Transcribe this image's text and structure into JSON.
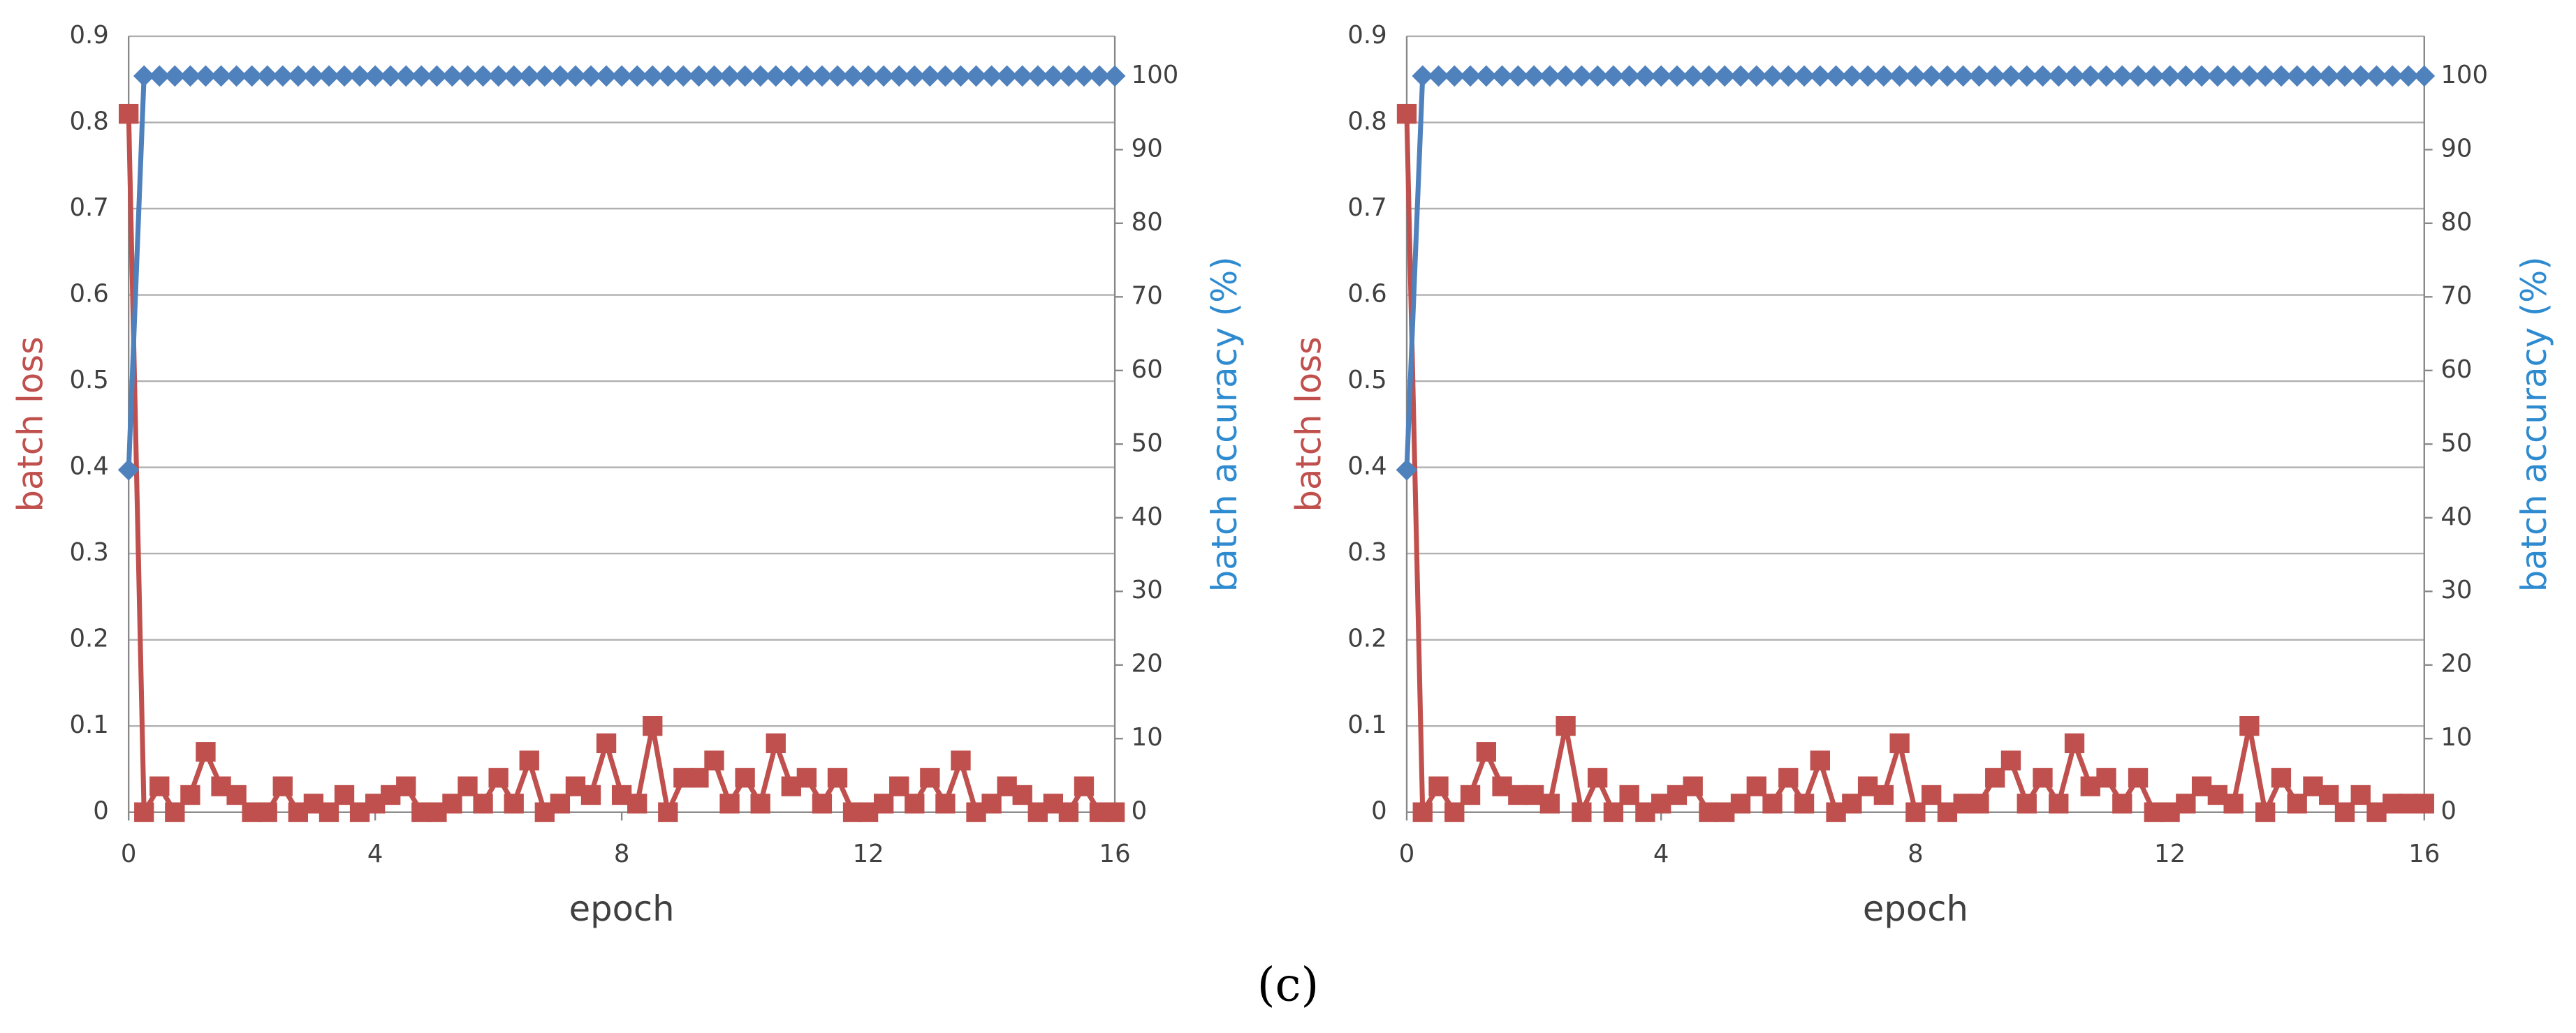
{
  "caption": "(c)",
  "chart_data": [
    {
      "type": "line",
      "xlabel": "epoch",
      "ylabel": "batch loss",
      "y2label": "batch accuracy (%)",
      "x": [
        0,
        0.25,
        0.5,
        0.75,
        1,
        1.25,
        1.5,
        1.75,
        2,
        2.25,
        2.5,
        2.75,
        3,
        3.25,
        3.5,
        3.75,
        4,
        4.25,
        4.5,
        4.75,
        5,
        5.25,
        5.5,
        5.75,
        6,
        6.25,
        6.5,
        6.75,
        7,
        7.25,
        7.5,
        7.75,
        8,
        8.25,
        8.5,
        8.75,
        9,
        9.25,
        9.5,
        9.75,
        10,
        10.25,
        10.5,
        10.75,
        11,
        11.25,
        11.5,
        11.75,
        12,
        12.25,
        12.5,
        12.75,
        13,
        13.25,
        13.5,
        13.75,
        14,
        14.25,
        14.5,
        14.75,
        15,
        15.25,
        15.5,
        15.75,
        16
      ],
      "xlim": [
        0,
        16
      ],
      "xticks": [
        0,
        4,
        8,
        12,
        16
      ],
      "ylim": [
        0,
        0.9
      ],
      "yticks": [
        0,
        0.1,
        0.2,
        0.3,
        0.4,
        0.5,
        0.6,
        0.7,
        0.8,
        0.9
      ],
      "y2lim": [
        0,
        105.4
      ],
      "y2ticks": [
        0,
        10,
        20,
        30,
        40,
        50,
        60,
        70,
        80,
        90,
        100
      ],
      "grid": true,
      "series": [
        {
          "color": "#c0504d",
          "marker": "square",
          "values": [
            0.81,
            0,
            0.03,
            0,
            0.02,
            0.07,
            0.03,
            0.02,
            0,
            0,
            0.03,
            0,
            0.01,
            0,
            0.02,
            0,
            0.01,
            0.02,
            0.03,
            0,
            0,
            0.01,
            0.03,
            0.01,
            0.04,
            0.01,
            0.06,
            0,
            0.01,
            0.03,
            0.02,
            0.08,
            0.02,
            0.01,
            0.1,
            0,
            0.04,
            0.04,
            0.06,
            0.01,
            0.04,
            0.01,
            0.08,
            0.03,
            0.04,
            0.01,
            0.04,
            0,
            0,
            0.01,
            0.03,
            0.01,
            0.04,
            0.01,
            0.06,
            0,
            0.01,
            0.03,
            0.02,
            0,
            0.01,
            0,
            0.03,
            0,
            0
          ]
        },
        {
          "color": "#4f81bd",
          "marker": "diamond",
          "axis": "y2",
          "values": [
            46.5,
            100,
            100,
            100,
            100,
            100,
            100,
            100,
            100,
            100,
            100,
            100,
            100,
            100,
            100,
            100,
            100,
            100,
            100,
            100,
            100,
            100,
            100,
            100,
            100,
            100,
            100,
            100,
            100,
            100,
            100,
            100,
            100,
            100,
            100,
            100,
            100,
            100,
            100,
            100,
            100,
            100,
            100,
            100,
            100,
            100,
            100,
            100,
            100,
            100,
            100,
            100,
            100,
            100,
            100,
            100,
            100,
            100,
            100,
            100,
            100,
            100,
            100,
            100,
            100
          ]
        }
      ]
    },
    {
      "type": "line",
      "xlabel": "epoch",
      "ylabel": "batch loss",
      "y2label": "batch accuracy (%)",
      "x": [
        0,
        0.25,
        0.5,
        0.75,
        1,
        1.25,
        1.5,
        1.75,
        2,
        2.25,
        2.5,
        2.75,
        3,
        3.25,
        3.5,
        3.75,
        4,
        4.25,
        4.5,
        4.75,
        5,
        5.25,
        5.5,
        5.75,
        6,
        6.25,
        6.5,
        6.75,
        7,
        7.25,
        7.5,
        7.75,
        8,
        8.25,
        8.5,
        8.75,
        9,
        9.25,
        9.5,
        9.75,
        10,
        10.25,
        10.5,
        10.75,
        11,
        11.25,
        11.5,
        11.75,
        12,
        12.25,
        12.5,
        12.75,
        13,
        13.25,
        13.5,
        13.75,
        14,
        14.25,
        14.5,
        14.75,
        15,
        15.25,
        15.5,
        15.75,
        16
      ],
      "xlim": [
        0,
        16
      ],
      "xticks": [
        0,
        4,
        8,
        12,
        16
      ],
      "ylim": [
        0,
        0.9
      ],
      "yticks": [
        0,
        0.1,
        0.2,
        0.3,
        0.4,
        0.5,
        0.6,
        0.7,
        0.8,
        0.9
      ],
      "y2lim": [
        0,
        105.4
      ],
      "y2ticks": [
        0,
        10,
        20,
        30,
        40,
        50,
        60,
        70,
        80,
        90,
        100
      ],
      "grid": true,
      "series": [
        {
          "color": "#c0504d",
          "marker": "square",
          "values": [
            0.81,
            0,
            0.03,
            0,
            0.02,
            0.07,
            0.03,
            0.02,
            0.02,
            0.01,
            0.1,
            0,
            0.04,
            0,
            0.02,
            0,
            0.01,
            0.02,
            0.03,
            0,
            0,
            0.01,
            0.03,
            0.01,
            0.04,
            0.01,
            0.06,
            0,
            0.01,
            0.03,
            0.02,
            0.08,
            0,
            0.02,
            0,
            0.01,
            0.01,
            0.04,
            0.06,
            0.01,
            0.04,
            0.01,
            0.08,
            0.03,
            0.04,
            0.01,
            0.04,
            0,
            0,
            0.01,
            0.03,
            0.02,
            0.01,
            0.1,
            0,
            0.04,
            0.01,
            0.03,
            0.02,
            0,
            0.02,
            0,
            0.01,
            0.01,
            0.01
          ]
        },
        {
          "color": "#4f81bd",
          "marker": "diamond",
          "axis": "y2",
          "values": [
            46.5,
            100,
            100,
            100,
            100,
            100,
            100,
            100,
            100,
            100,
            100,
            100,
            100,
            100,
            100,
            100,
            100,
            100,
            100,
            100,
            100,
            100,
            100,
            100,
            100,
            100,
            100,
            100,
            100,
            100,
            100,
            100,
            100,
            100,
            100,
            100,
            100,
            100,
            100,
            100,
            100,
            100,
            100,
            100,
            100,
            100,
            100,
            100,
            100,
            100,
            100,
            100,
            100,
            100,
            100,
            100,
            100,
            100,
            100,
            100,
            100,
            100,
            100,
            100,
            100
          ]
        }
      ]
    }
  ]
}
